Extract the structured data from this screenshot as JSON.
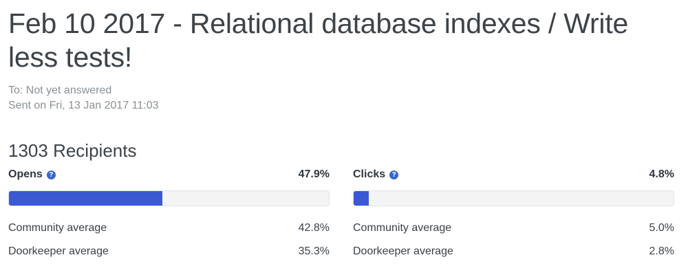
{
  "email": {
    "title": "Feb 10 2017 - Relational database indexes / Write less tests!",
    "to": "To: Not yet answered",
    "sent": "Sent on Fri, 13 Jan 2017 11:03"
  },
  "recipients": {
    "label": "1303 Recipients"
  },
  "stats": [
    {
      "label": "Opens",
      "help_icon": "?",
      "percent": "47.9%",
      "fill_fraction": 0.479,
      "averages": [
        {
          "label": "Community average",
          "value": "42.8%"
        },
        {
          "label": "Doorkeeper average",
          "value": "35.3%"
        }
      ]
    },
    {
      "label": "Clicks",
      "help_icon": "?",
      "percent": "4.8%",
      "fill_fraction": 0.048,
      "averages": [
        {
          "label": "Community average",
          "value": "5.0%"
        },
        {
          "label": "Doorkeeper average",
          "value": "2.8%"
        }
      ]
    }
  ],
  "colors": {
    "bar_fill": "#3b59d3",
    "bar_track": "#f4f4f5",
    "help_icon": "#3a66c8",
    "text": "#3c4349",
    "muted_text": "#8a9196"
  }
}
